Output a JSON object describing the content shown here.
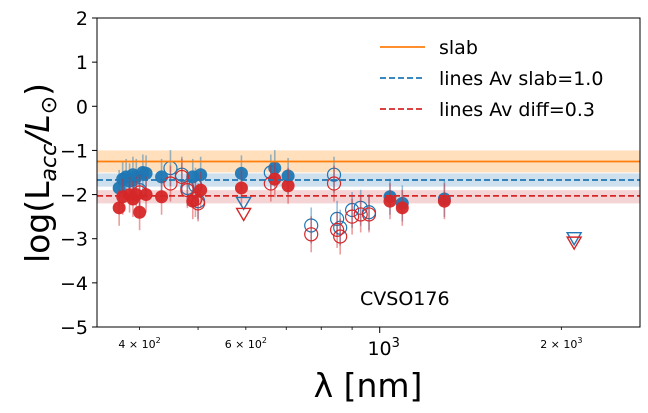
{
  "chart_data": {
    "type": "scatter",
    "title": "",
    "annotation": "CVSO176",
    "xlabel": "λ [nm]",
    "ylabel_main": "log(L",
    "ylabel_sub": "acc",
    "ylabel_tail": "/L",
    "ylabel_sun": "⊙",
    "ylabel_close": ")",
    "xscale": "log",
    "xlim": [
      340,
      2700
    ],
    "ylim": [
      -5,
      2
    ],
    "yticks": [
      2,
      1,
      0,
      -1,
      -2,
      -3,
      -4,
      -5
    ],
    "ytick_labels": [
      "2",
      "1",
      "0",
      "−1",
      "−2",
      "−3",
      "−4",
      "−5"
    ],
    "xticks_major": [
      1000
    ],
    "xtick_labels_major": [
      "10"
    ],
    "xtick_labels_major_exp": [
      "3"
    ],
    "xticks_minor_labeled": [
      400,
      600,
      2000
    ],
    "xtick_labels_minor_base": [
      "4 × 10",
      "6 × 10",
      "2 × 10"
    ],
    "xtick_labels_minor_exp": [
      "2",
      "2",
      "3"
    ],
    "xticks_minor": [
      400,
      500,
      600,
      700,
      800,
      900,
      2000
    ],
    "legend_position": "top-right",
    "legend": [
      {
        "label": "slab",
        "style": "solid",
        "color": "#ff7f0e"
      },
      {
        "label": "lines Av slab=1.0",
        "style": "dashed",
        "color": "#1f77b4"
      },
      {
        "label": "lines Av diff=0.3",
        "style": "dashed",
        "color": "#d62728"
      }
    ],
    "hlines": [
      {
        "name": "slab",
        "y": -1.25,
        "band": [
          -1.0,
          -1.5
        ],
        "color": "#ff7f0e",
        "band_color": "#ffd9b0",
        "style": "solid"
      },
      {
        "name": "lines-av-slab",
        "y": -1.67,
        "band": [
          -1.52,
          -1.82
        ],
        "color": "#1f77b4",
        "band_color": "#c6d9ea",
        "style": "dashed"
      },
      {
        "name": "lines-av-diff",
        "y": -2.03,
        "band": [
          -1.9,
          -2.2
        ],
        "color": "#d62728",
        "band_color": "#f2cccc",
        "style": "dashed"
      }
    ],
    "series": [
      {
        "name": "blue-filled",
        "color": "#1f77b4",
        "marker": "filled-circle",
        "points": [
          [
            370,
            -1.85
          ],
          [
            375,
            -1.65
          ],
          [
            380,
            -1.6
          ],
          [
            385,
            -1.7
          ],
          [
            390,
            -1.55
          ],
          [
            395,
            -1.6
          ],
          [
            405,
            -1.5
          ],
          [
            410,
            -1.52
          ],
          [
            435,
            -1.6
          ],
          [
            490,
            -1.6
          ],
          [
            505,
            -1.55
          ],
          [
            590,
            -1.52
          ],
          [
            670,
            -1.4
          ],
          [
            705,
            -1.58
          ],
          [
            1040,
            -2.05
          ],
          [
            1090,
            -2.2
          ],
          [
            1280,
            -2.1
          ]
        ]
      },
      {
        "name": "blue-open",
        "color": "#1f77b4",
        "marker": "open-circle",
        "points": [
          [
            400,
            -1.9
          ],
          [
            450,
            -1.4
          ],
          [
            470,
            -1.55
          ],
          [
            480,
            -1.85
          ],
          [
            495,
            -1.8
          ],
          [
            500,
            -2.15
          ],
          [
            660,
            -1.5
          ],
          [
            770,
            -2.7
          ],
          [
            840,
            -1.55
          ],
          [
            850,
            -2.55
          ],
          [
            860,
            -2.75
          ],
          [
            900,
            -2.35
          ],
          [
            930,
            -2.3
          ],
          [
            960,
            -2.4
          ]
        ]
      },
      {
        "name": "red-filled",
        "color": "#d62728",
        "marker": "filled-circle",
        "points": [
          [
            370,
            -2.3
          ],
          [
            375,
            -2.05
          ],
          [
            385,
            -2.0
          ],
          [
            390,
            -2.1
          ],
          [
            395,
            -2.0
          ],
          [
            400,
            -2.4
          ],
          [
            410,
            -2.0
          ],
          [
            435,
            -2.05
          ],
          [
            490,
            -2.15
          ],
          [
            505,
            -1.9
          ],
          [
            590,
            -1.85
          ],
          [
            670,
            -1.65
          ],
          [
            705,
            -1.8
          ],
          [
            1040,
            -2.15
          ],
          [
            1090,
            -2.3
          ],
          [
            1280,
            -2.15
          ]
        ]
      },
      {
        "name": "red-open",
        "color": "#d62728",
        "marker": "open-circle",
        "points": [
          [
            400,
            -1.95
          ],
          [
            450,
            -1.75
          ],
          [
            470,
            -1.6
          ],
          [
            480,
            -1.9
          ],
          [
            495,
            -2.1
          ],
          [
            500,
            -2.2
          ],
          [
            660,
            -1.75
          ],
          [
            770,
            -2.9
          ],
          [
            840,
            -1.75
          ],
          [
            850,
            -2.8
          ],
          [
            860,
            -2.95
          ],
          [
            900,
            -2.5
          ],
          [
            930,
            -2.45
          ],
          [
            960,
            -2.45
          ]
        ]
      },
      {
        "name": "upper-limits-blue",
        "color": "#1f77b4",
        "marker": "down-triangle",
        "points": [
          [
            595,
            -2.2
          ],
          [
            2100,
            -3.0
          ]
        ]
      },
      {
        "name": "upper-limits-red",
        "color": "#d62728",
        "marker": "down-triangle",
        "points": [
          [
            595,
            -2.45
          ],
          [
            2100,
            -3.1
          ]
        ]
      }
    ]
  }
}
